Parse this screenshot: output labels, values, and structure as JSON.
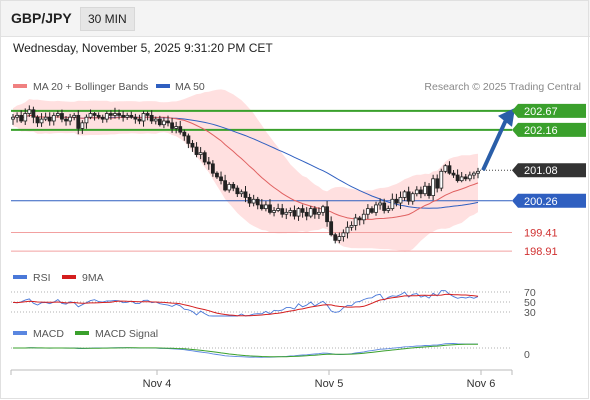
{
  "header": {
    "pair": "GBP/JPY",
    "timeframe": "30 MIN"
  },
  "datetime": "Wednesday, November 5, 2025 9:31:20 PM CET",
  "legend": {
    "ma20": "MA 20 + Bollinger Bands",
    "ma50": "MA 50",
    "credit": "Research © 2025 Trading Central"
  },
  "colors": {
    "support_resistance": "#3aa02c",
    "ma50": "#2f5fc0",
    "ma20": "#e06060",
    "band": "#ffd0d0",
    "arrow": "#2a5ea8",
    "rsi": "#4a78d8",
    "rsi_ma": "#d41e1e",
    "macd": "#5a86e0",
    "macd_signal": "#3aa02c"
  },
  "chart_data": [
    {
      "type": "candlestick",
      "title": "GBP/JPY",
      "timeframe": "30 MIN",
      "x_labels": [
        "Nov 4",
        "Nov 5",
        "Nov 6"
      ],
      "current_price": 201.08,
      "horizontal_levels": [
        {
          "label": "202.67",
          "value": 202.67,
          "kind": "resistance"
        },
        {
          "label": "202.16",
          "value": 202.16,
          "kind": "resistance"
        },
        {
          "label": "201.08",
          "value": 201.08,
          "kind": "current"
        },
        {
          "label": "200.26",
          "value": 200.26,
          "kind": "pivot"
        },
        {
          "label": "199.41",
          "value": 199.41,
          "kind": "support"
        },
        {
          "label": "198.91",
          "value": 198.91,
          "kind": "support"
        }
      ],
      "overlays": [
        "MA 20 + Bollinger Bands",
        "MA 50"
      ],
      "forecast": "up",
      "close_series": [
        202.5,
        202.55,
        202.4,
        202.6,
        202.7,
        202.5,
        202.35,
        202.45,
        202.5,
        202.4,
        202.55,
        202.6,
        202.45,
        202.4,
        202.5,
        202.55,
        202.2,
        202.35,
        202.5,
        202.6,
        202.55,
        202.5,
        202.45,
        202.6,
        202.55,
        202.6,
        202.55,
        202.5,
        202.55,
        202.5,
        202.45,
        202.4,
        202.6,
        202.55,
        202.4,
        202.45,
        202.3,
        202.4,
        202.35,
        202.2,
        202.25,
        202.1,
        202.0,
        201.8,
        201.7,
        201.5,
        201.55,
        201.3,
        201.25,
        201.0,
        200.9,
        200.8,
        200.55,
        200.7,
        200.6,
        200.45,
        200.5,
        200.35,
        200.2,
        200.3,
        200.15,
        200.05,
        200.15,
        199.95,
        200.0,
        200.05,
        199.9,
        199.95,
        200.0,
        199.85,
        200.05,
        199.95,
        199.85,
        200.05,
        199.9,
        199.95,
        200.1,
        199.7,
        199.35,
        199.2,
        199.3,
        199.4,
        199.55,
        199.6,
        199.8,
        199.75,
        199.9,
        200.05,
        199.95,
        200.15,
        200.2,
        200.0,
        200.05,
        200.3,
        200.2,
        200.35,
        200.5,
        200.25,
        200.45,
        200.55,
        200.45,
        200.65,
        200.4,
        200.85,
        200.6,
        201.05,
        201.2,
        201.0,
        200.95,
        200.8,
        200.9,
        200.85,
        200.95,
        201.0,
        201.05
      ],
      "rsi": {
        "label": "RSI",
        "ma_label": "9MA",
        "levels": [
          70,
          50,
          30
        ]
      },
      "macd": {
        "label": "MACD",
        "signal_label": "MACD Signal",
        "zero_label": "0"
      }
    }
  ]
}
